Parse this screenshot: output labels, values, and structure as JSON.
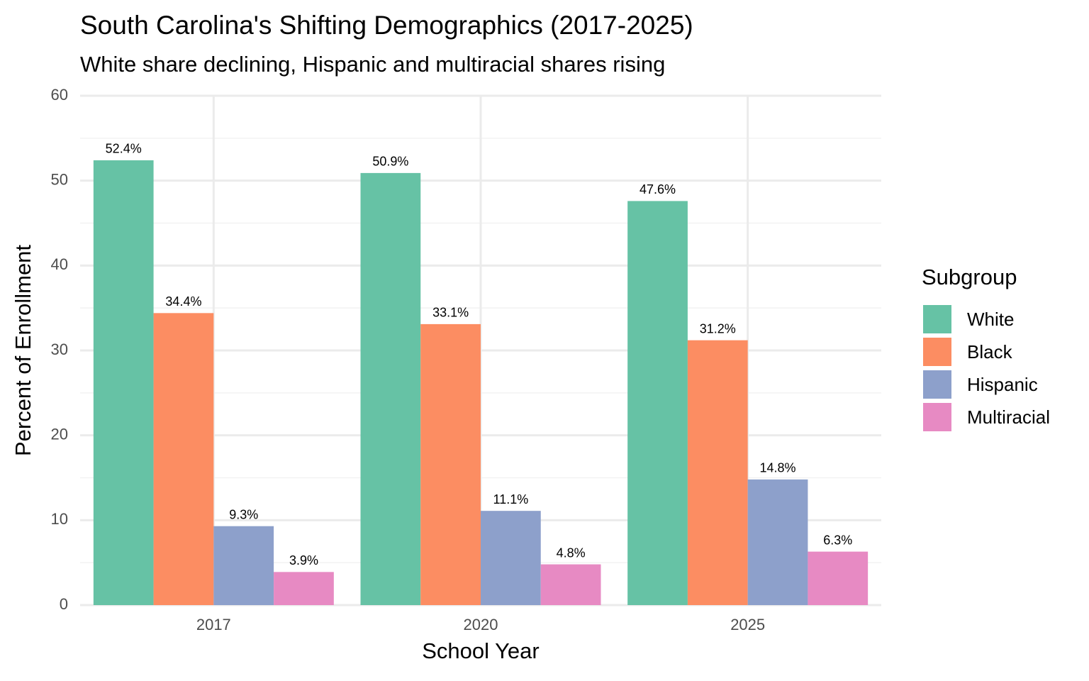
{
  "chart_data": {
    "type": "bar",
    "title": "South Carolina's Shifting Demographics (2017-2025)",
    "subtitle": "White share declining, Hispanic and multiracial shares rising",
    "x_label": "School Year",
    "y_label": "Percent of Enrollment",
    "legend_title": "Subgroup",
    "legend_position": "right",
    "categories": [
      "2017",
      "2020",
      "2025"
    ],
    "series": [
      {
        "name": "White",
        "color": "#66c2a5",
        "values": [
          52.4,
          50.9,
          47.6
        ],
        "value_labels": [
          "52.4%",
          "50.9%",
          "47.6%"
        ]
      },
      {
        "name": "Black",
        "color": "#fc8d62",
        "values": [
          34.4,
          33.1,
          31.2
        ],
        "value_labels": [
          "34.4%",
          "33.1%",
          "31.2%"
        ]
      },
      {
        "name": "Hispanic",
        "color": "#8da0cb",
        "values": [
          9.3,
          11.1,
          14.8
        ],
        "value_labels": [
          "9.3%",
          "11.1%",
          "14.8%"
        ]
      },
      {
        "name": "Multiracial",
        "color": "#e78ac3",
        "values": [
          3.9,
          4.8,
          6.3
        ],
        "value_labels": [
          "3.9%",
          "4.8%",
          "6.3%"
        ]
      }
    ],
    "ylim": [
      0,
      60
    ],
    "yticks": [
      0,
      10,
      20,
      30,
      40,
      50,
      60
    ],
    "minor_yticks": [
      5,
      15,
      25,
      35,
      45,
      55
    ],
    "grid": true
  }
}
